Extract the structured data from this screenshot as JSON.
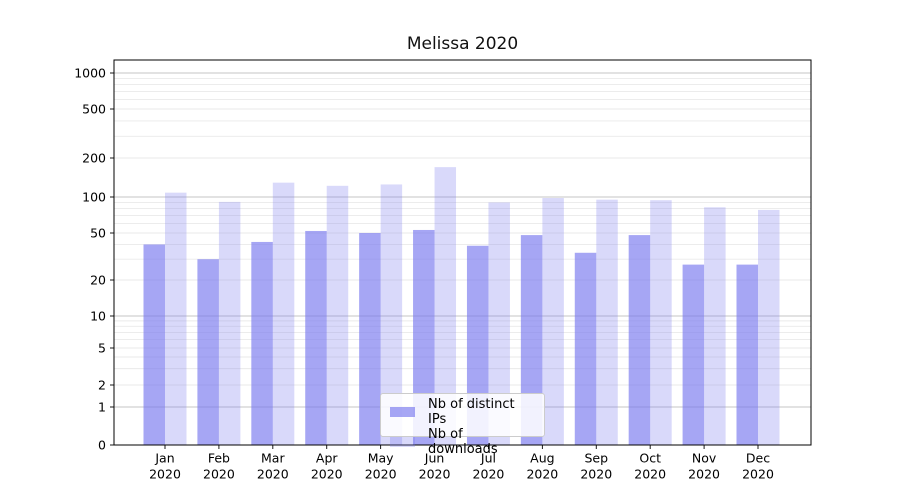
{
  "chart_data": {
    "type": "bar",
    "title": "Melissa 2020",
    "categories": [
      "Jan 2020",
      "Feb 2020",
      "Mar 2020",
      "Apr 2020",
      "May 2020",
      "Jun 2020",
      "Jul 2020",
      "Aug 2020",
      "Sep 2020",
      "Oct 2020",
      "Nov 2020",
      "Dec 2020"
    ],
    "series": [
      {
        "name": "Nb of distinct IPs",
        "color": "#7777ee",
        "alpha": 0.65,
        "values": [
          40,
          30,
          42,
          52,
          50,
          53,
          39,
          48,
          34,
          48,
          27,
          27
        ]
      },
      {
        "name": "Nb of downloads",
        "color": "#7777ee",
        "alpha": 0.28,
        "values": [
          108,
          91,
          129,
          122,
          125,
          170,
          90,
          98,
          95,
          94,
          82,
          78
        ]
      }
    ],
    "y_ticks": [
      0,
      1,
      2,
      5,
      10,
      20,
      50,
      100,
      200,
      500,
      1000
    ],
    "y_scale": "symlog",
    "xlabel": "",
    "ylabel": "",
    "grid": true,
    "legend_position": "lower center"
  },
  "colors": {
    "grid_major": "#c6c6c6",
    "grid_minor": "#eaeaea",
    "spine": "#000000",
    "text": "#000000"
  }
}
